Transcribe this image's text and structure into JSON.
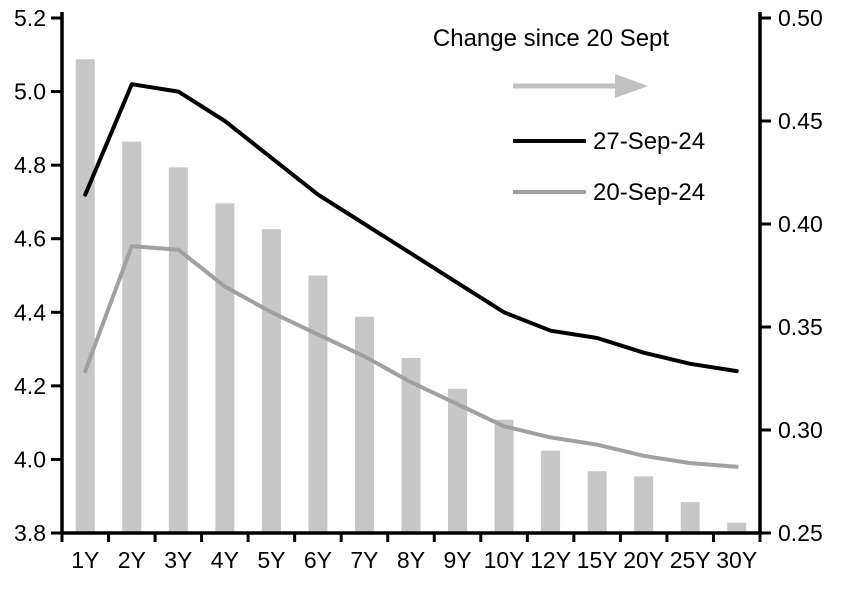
{
  "chart_data": {
    "type": "bar",
    "subtype": "dual-axis bar + two lines",
    "title": "",
    "categories": [
      "1Y",
      "2Y",
      "3Y",
      "4Y",
      "5Y",
      "6Y",
      "7Y",
      "8Y",
      "9Y",
      "10Y",
      "12Y",
      "15Y",
      "20Y",
      "25Y",
      "30Y"
    ],
    "left_axis": {
      "min": 3.8,
      "max": 5.2,
      "tick_step": 0.2,
      "tick_labels": [
        "5.2",
        "5.0",
        "4.8",
        "4.6",
        "4.4",
        "4.2",
        "4.0",
        "3.8"
      ]
    },
    "right_axis": {
      "min": 0.25,
      "max": 0.5,
      "tick_step": 0.05,
      "tick_labels": [
        "0.50",
        "0.45",
        "0.40",
        "0.35",
        "0.30",
        "0.25"
      ]
    },
    "grid": "off",
    "legend_position": "top-right-inside",
    "series": [
      {
        "name": "Change since 20 Sept",
        "type": "bar",
        "axis": "right",
        "color": "#c7c7c7",
        "values": [
          0.48,
          0.44,
          0.4275,
          0.41,
          0.3975,
          0.375,
          0.355,
          0.335,
          0.32,
          0.305,
          0.29,
          0.28,
          0.2775,
          0.265,
          0.255
        ]
      },
      {
        "name": "27-Sep-24",
        "type": "line",
        "axis": "left",
        "color": "#000000",
        "values": [
          4.72,
          5.02,
          5.0,
          4.92,
          4.82,
          4.72,
          4.64,
          4.56,
          4.48,
          4.4,
          4.35,
          4.33,
          4.29,
          4.26,
          4.24
        ]
      },
      {
        "name": "20-Sep-24",
        "type": "line",
        "axis": "left",
        "color": "#a0a0a0",
        "values": [
          4.24,
          4.58,
          4.57,
          4.47,
          4.4,
          4.34,
          4.28,
          4.21,
          4.15,
          4.09,
          4.06,
          4.04,
          4.01,
          3.99,
          3.98
        ]
      }
    ],
    "legend": {
      "bar_series_label": "Change since 20 Sept",
      "arrow_color": "#c1c1c1",
      "entries": [
        {
          "label": "27-Sep-24",
          "color": "#000000"
        },
        {
          "label": "20-Sep-24",
          "color": "#a0a0a0"
        }
      ]
    }
  }
}
